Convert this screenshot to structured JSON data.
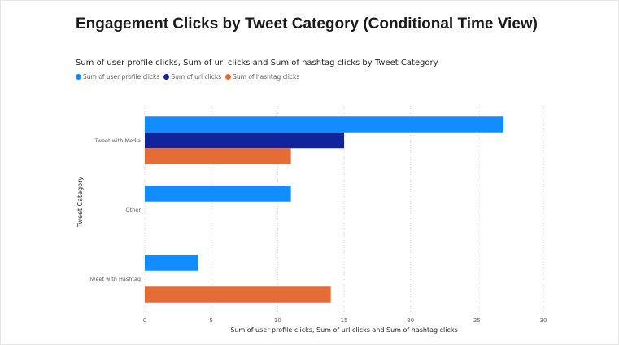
{
  "page": {
    "title": "Engagement Clicks by Tweet Category (Conditional Time View)"
  },
  "chart_data": {
    "type": "bar",
    "orientation": "horizontal",
    "title": "Sum of user profile clicks, Sum of url clicks and Sum of hashtag clicks by Tweet Category",
    "xlabel": "Sum of user profile clicks, Sum of url clicks and Sum of hashtag clicks",
    "ylabel": "Tweet Category",
    "categories": [
      "Tweet with Media",
      "Other",
      "Tweet with Hashtag"
    ],
    "series": [
      {
        "name": "Sum of user profile clicks",
        "color": "#118DFF",
        "values": [
          27,
          11,
          4
        ]
      },
      {
        "name": "Sum of url clicks",
        "color": "#12239E",
        "values": [
          15,
          0,
          0
        ]
      },
      {
        "name": "Sum of hashtag clicks",
        "color": "#E66C37",
        "values": [
          11,
          0,
          14
        ]
      }
    ],
    "xlim": [
      0,
      30
    ],
    "xticks": [
      0,
      5,
      10,
      15,
      20,
      25,
      30
    ],
    "grid": true,
    "legend_position": "top-left"
  }
}
